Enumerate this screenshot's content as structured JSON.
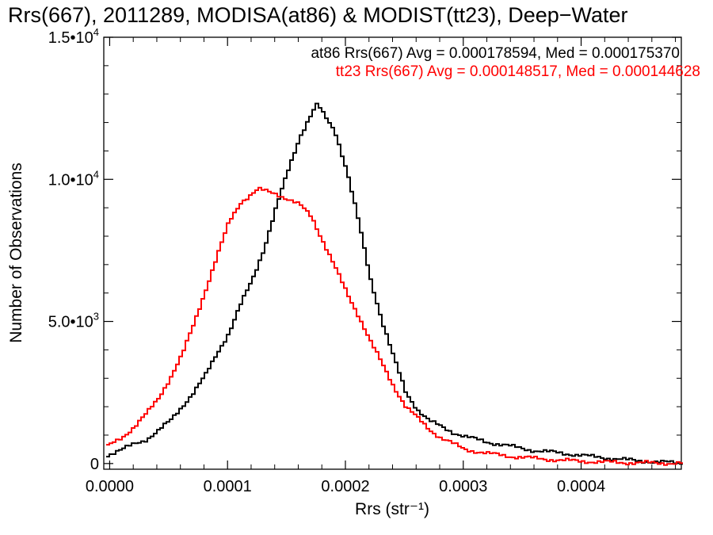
{
  "chart_data": {
    "type": "line",
    "title": "Rrs(667), 2011289, MODISA(at86) & MODIST(tt23), Deep−Water",
    "xlabel": "Rrs (str⁻¹)",
    "ylabel": "Number of Observations",
    "xlim": [
      -5e-06,
      0.000485
    ],
    "ylim": [
      -200,
      15000
    ],
    "x_ticks": [
      0.0,
      0.0001,
      0.0002,
      0.0003,
      0.0004
    ],
    "x_tick_labels": [
      "0.0000",
      "0.0001",
      "0.0002",
      "0.0003",
      "0.0004"
    ],
    "y_ticks": [
      {
        "value": 0,
        "mantissa": "0",
        "exp": ""
      },
      {
        "value": 5000,
        "mantissa": "5.0•10",
        "exp": "3"
      },
      {
        "value": 10000,
        "mantissa": "1.0•10",
        "exp": "4"
      },
      {
        "value": 15000,
        "mantissa": "1.5•10",
        "exp": "4"
      }
    ],
    "grid": false,
    "annotations": [
      {
        "text": "at86 Rrs(667) Avg = 0.000178594, Med = 0.000175370",
        "color": "#000000"
      },
      {
        "text": "tt23 Rrs(667) Avg = 0.000148517, Med = 0.000144628",
        "color": "#ff0000"
      }
    ],
    "series": [
      {
        "color": "#000000",
        "x": [
          -3e-06,
          1e-05,
          2e-05,
          3e-05,
          4e-05,
          5e-05,
          6e-05,
          7e-05,
          8e-05,
          9e-05,
          0.0001,
          0.00011,
          0.00012,
          0.00013,
          0.00014,
          0.00015,
          0.00016,
          0.00017,
          0.000175,
          0.00018,
          0.00019,
          0.0002,
          0.00021,
          0.00022,
          0.00023,
          0.00024,
          0.00025,
          0.00026,
          0.00027,
          0.00028,
          0.00029,
          0.0003,
          0.00032,
          0.00034,
          0.00036,
          0.00038,
          0.0004,
          0.00042,
          0.00044,
          0.00046,
          0.000485
        ],
        "y": [
          300,
          500,
          700,
          850,
          1150,
          1500,
          2000,
          2500,
          3100,
          3900,
          4600,
          5600,
          6500,
          7600,
          9000,
          10300,
          11500,
          12300,
          12650,
          12300,
          11700,
          10300,
          8500,
          6500,
          5000,
          3700,
          2500,
          1900,
          1500,
          1300,
          1100,
          950,
          750,
          600,
          450,
          380,
          280,
          200,
          120,
          60,
          20
        ]
      },
      {
        "color": "#ff0000",
        "x": [
          -3e-06,
          1e-05,
          2e-05,
          3e-05,
          4e-05,
          5e-05,
          6e-05,
          7e-05,
          8e-05,
          9e-05,
          0.0001,
          0.00011,
          0.00012,
          0.000125,
          0.00013,
          0.00014,
          0.00015,
          0.00016,
          0.00017,
          0.00018,
          0.00019,
          0.0002,
          0.00021,
          0.00022,
          0.00023,
          0.00024,
          0.00025,
          0.00026,
          0.00027,
          0.00028,
          0.00029,
          0.0003,
          0.00032,
          0.00034,
          0.00036,
          0.00038,
          0.0004,
          0.00042,
          0.00044,
          0.00046,
          0.000485
        ],
        "y": [
          600,
          950,
          1300,
          1750,
          2300,
          3000,
          3800,
          4900,
          6100,
          7300,
          8500,
          9200,
          9500,
          9650,
          9600,
          9500,
          9300,
          9100,
          8700,
          7800,
          6900,
          6000,
          5200,
          4300,
          3500,
          2700,
          2000,
          1600,
          1200,
          900,
          700,
          500,
          350,
          250,
          180,
          120,
          80,
          50,
          30,
          20,
          10
        ]
      }
    ]
  }
}
